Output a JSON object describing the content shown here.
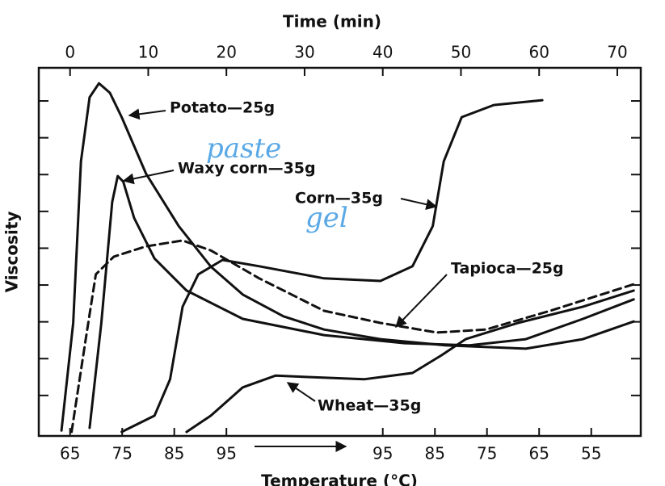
{
  "chart_data": {
    "type": "line",
    "xlabel": "Time (min)",
    "ylabel": "Viscosity",
    "x2label": "Temperature (°C)",
    "xlim": [
      -4,
      73
    ],
    "xticks": [
      0,
      10,
      20,
      30,
      40,
      50,
      60,
      70
    ],
    "x2ticks": [
      {
        "value": 0,
        "label": "65"
      },
      {
        "value": 6.67,
        "label": "75"
      },
      {
        "value": 13.33,
        "label": "85"
      },
      {
        "value": 20,
        "label": "95"
      },
      {
        "value": 40,
        "label": "95"
      },
      {
        "value": 46.67,
        "label": "85"
      },
      {
        "value": 53.33,
        "label": "75"
      },
      {
        "value": 60,
        "label": "65"
      },
      {
        "value": 66.67,
        "label": "55"
      }
    ],
    "ylim": [
      -0.1,
      9.9
    ],
    "yticks": [
      1,
      2,
      3,
      4,
      5,
      6,
      7,
      8,
      9
    ],
    "annotations": [
      {
        "text": "paste",
        "color": "#5aa9e6"
      },
      {
        "text": "gel",
        "color": "#5aa9e6"
      }
    ],
    "series": [
      {
        "name": "Potato—25g",
        "color": "#111111",
        "line_style": "solid",
        "x": [
          -1.1,
          0.4,
          1.4,
          2.5,
          3.7,
          5.1,
          6.6,
          9.7,
          13.9,
          18,
          22.1,
          27.3,
          32.5,
          39.7,
          48,
          58.3,
          65.6,
          72.1
        ],
        "values": [
          0.05,
          2.97,
          7.36,
          9.1,
          9.48,
          9.22,
          8.56,
          7.03,
          5.6,
          4.5,
          3.74,
          3.15,
          2.79,
          2.53,
          2.36,
          2.27,
          2.53,
          3.01
        ]
      },
      {
        "name": "Waxy corn—35g",
        "color": "#111111",
        "line_style": "solid",
        "x": [
          2.5,
          4,
          5.4,
          6.1,
          6.8,
          8.2,
          10.8,
          14.9,
          22.1,
          32.5,
          42.8,
          51.1,
          58.3,
          65.6,
          72.1
        ],
        "values": [
          0.12,
          2.97,
          6.26,
          6.96,
          6.81,
          5.82,
          4.72,
          3.85,
          3.08,
          2.64,
          2.42,
          2.36,
          2.53,
          3.08,
          3.61
        ]
      },
      {
        "name": "Corn—35g",
        "color": "#111111",
        "line_style": "solid",
        "x": [
          6.6,
          10.8,
          12.8,
          14.4,
          16.4,
          19.5,
          24.2,
          32.5,
          39.7,
          43.8,
          46.4,
          47.8,
          50.1,
          54.2,
          60.4
        ],
        "values": [
          0.01,
          0.45,
          1.44,
          3.41,
          4.29,
          4.68,
          4.51,
          4.18,
          4.11,
          4.51,
          5.6,
          7.36,
          8.56,
          8.89,
          9.02
        ]
      },
      {
        "name": "Tapioca—25g",
        "color": "#111111",
        "line_style": "dashed",
        "x": [
          0.2,
          2,
          3.3,
          5.6,
          9.7,
          14.4,
          18,
          24.2,
          32.5,
          39.7,
          46.9,
          53.2,
          61.4,
          72.1
        ],
        "values": [
          0.01,
          2.53,
          4.29,
          4.77,
          5.05,
          5.21,
          4.94,
          4.18,
          3.3,
          2.97,
          2.71,
          2.79,
          3.3,
          4.02
        ]
      },
      {
        "name": "Wheat—35g",
        "color": "#111111",
        "line_style": "solid",
        "x": [
          14.9,
          18,
          22.1,
          26.3,
          30.4,
          37.6,
          43.8,
          47.5,
          50.6,
          57.3,
          65.6,
          72.1
        ],
        "values": [
          0.01,
          0.45,
          1.22,
          1.54,
          1.5,
          1.44,
          1.61,
          2.09,
          2.53,
          2.97,
          3.41,
          3.85
        ]
      }
    ]
  }
}
